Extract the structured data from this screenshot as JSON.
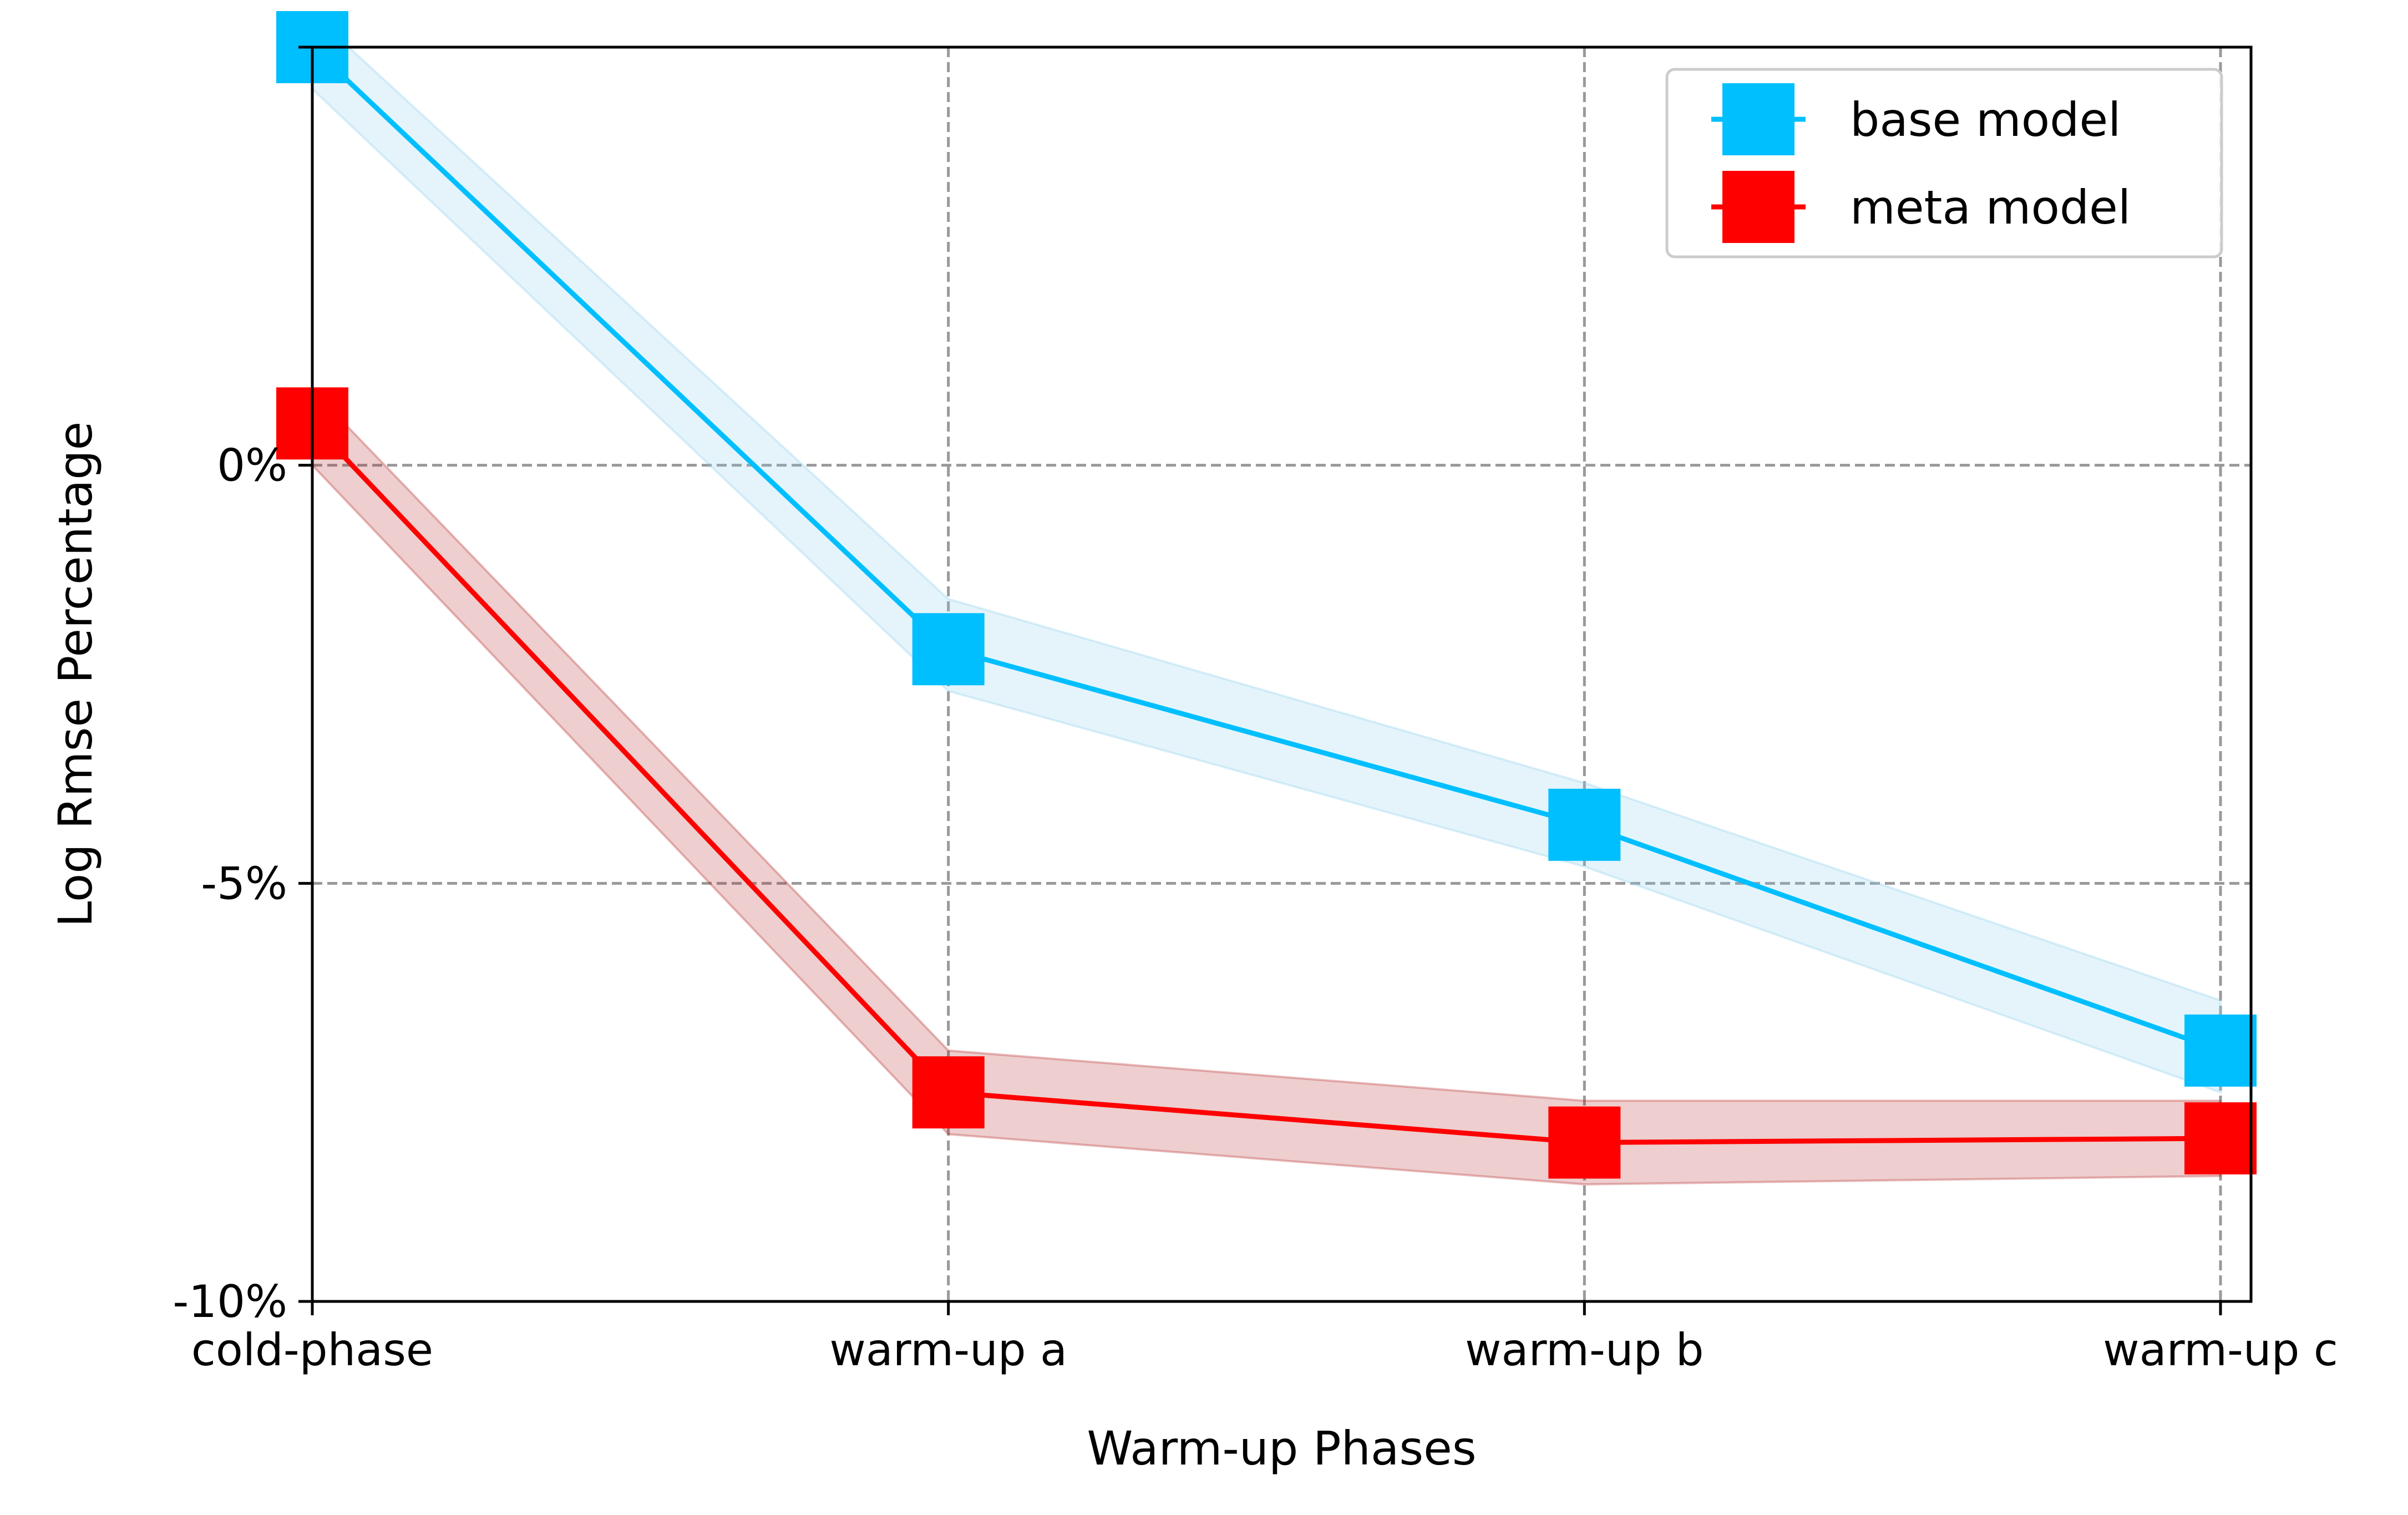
{
  "chart_data": {
    "type": "line",
    "categories": [
      "cold-phase",
      "warm-up a",
      "warm-up b",
      "warm-up c"
    ],
    "xlabel": "Warm-up Phases",
    "ylabel": "Log Rmse Percentage",
    "ylim": [
      -10,
      5
    ],
    "yticks": [
      0,
      -5,
      -10
    ],
    "ytick_labels": [
      "0%",
      "-5%",
      "-10%"
    ],
    "grid": true,
    "legend_position": "top-right",
    "series": [
      {
        "name": "base model",
        "values": [
          5.0,
          -2.2,
          -4.3,
          -7.0
        ],
        "lower": [
          4.5,
          -2.7,
          -4.8,
          -7.5
        ],
        "upper": [
          5.4,
          -1.6,
          -3.8,
          -6.4
        ],
        "color": "#00bfff",
        "band_color": "#87ceeb"
      },
      {
        "name": "meta model",
        "values": [
          0.5,
          -7.5,
          -8.1,
          -8.05
        ],
        "lower": [
          0.0,
          -8.0,
          -8.6,
          -8.5
        ],
        "upper": [
          0.9,
          -7.0,
          -7.6,
          -7.6
        ],
        "color": "#ff0000",
        "band_color": "#b22222"
      }
    ]
  }
}
